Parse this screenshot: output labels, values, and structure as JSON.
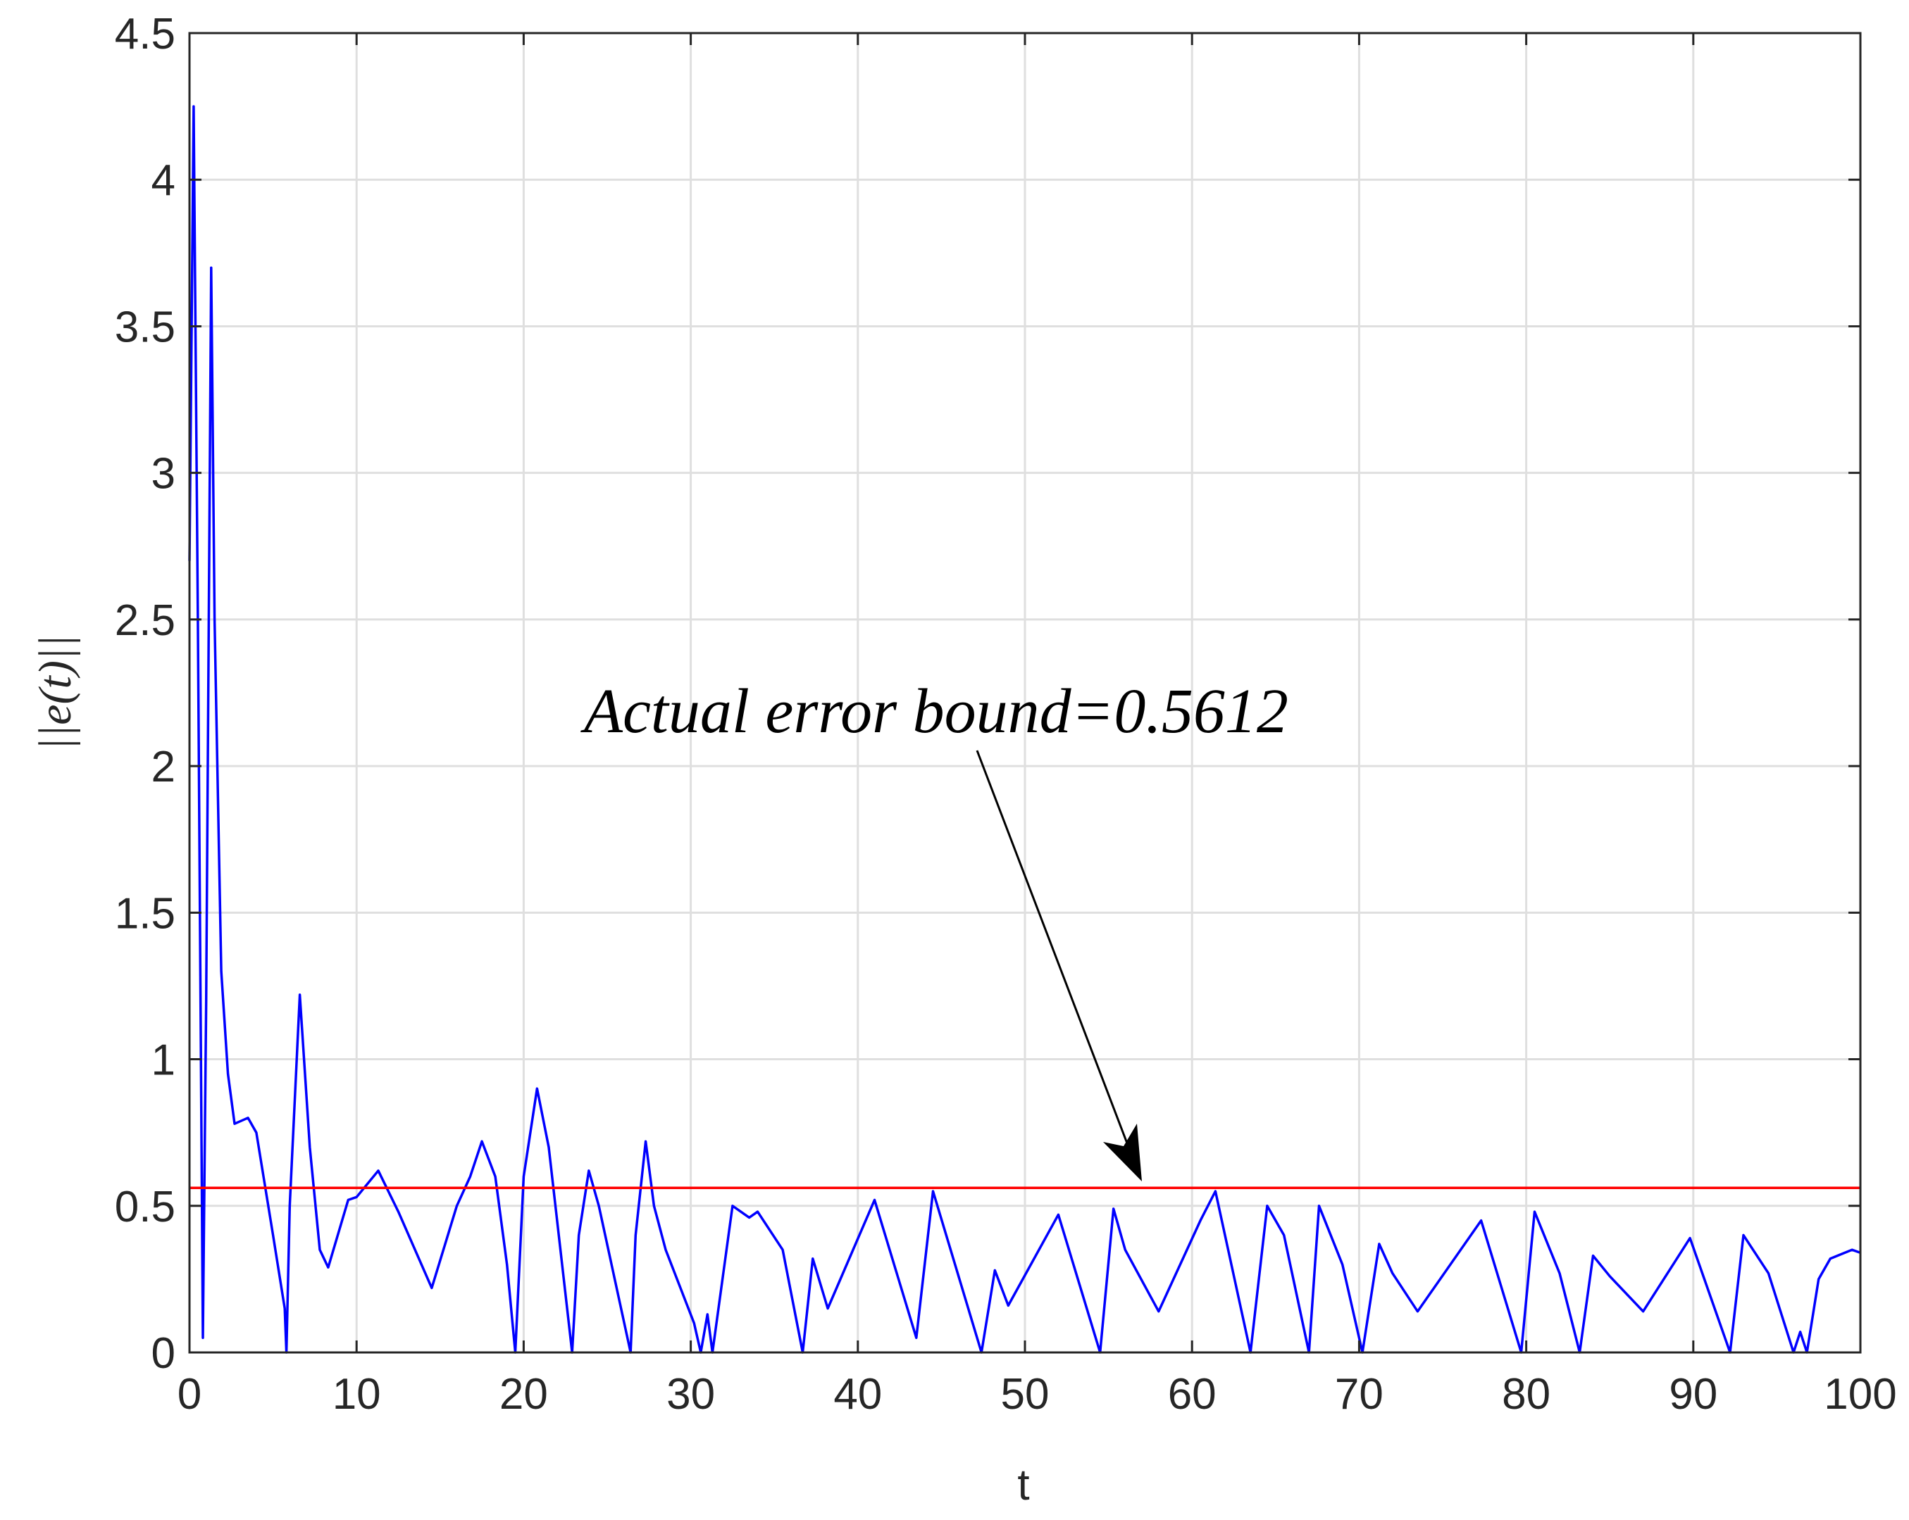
{
  "chart_data": {
    "type": "line",
    "xlabel": "t",
    "ylabel": "||e(t)||",
    "annotation": "Actual error bound=0.5612",
    "reference_line": {
      "value": 0.5612,
      "color": "#ff0000"
    },
    "series": [
      {
        "color": "#0000ff",
        "x": [
          0,
          0.25,
          0.5,
          0.8,
          1.0,
          1.3,
          1.5,
          1.9,
          2.3,
          2.7,
          3.5,
          4,
          5,
          5.7,
          5.8,
          6.0,
          6.6,
          7.2,
          7.8,
          8.3,
          9.5,
          10,
          11.3,
          12.5,
          14.5,
          16,
          16.8,
          17.5,
          18.3,
          19,
          19.5,
          20,
          20.8,
          21.5,
          22.9,
          23.3,
          23.9,
          24.5,
          26.4,
          26.7,
          27.3,
          27.8,
          28.5,
          30.2,
          30.6,
          31,
          31.3,
          32.5,
          33.5,
          34,
          35.5,
          36.7,
          37.3,
          38.2,
          41,
          43.5,
          44.5,
          47.4,
          48.2,
          49,
          52,
          54.5,
          55.3,
          56,
          58,
          60.5,
          61.4,
          63.5,
          64.5,
          65.5,
          67,
          67.6,
          69,
          70.2,
          71.2,
          72,
          73.5,
          77.3,
          79.7,
          80.5,
          82,
          83.2,
          84,
          85,
          87,
          89.8,
          92.2,
          93,
          94.5,
          96,
          96.4,
          96.8,
          97.5,
          98.2,
          99.5,
          100
        ],
        "values": [
          2.7,
          4.25,
          2.5,
          0.05,
          1.2,
          3.7,
          2.5,
          1.3,
          0.95,
          0.78,
          0.8,
          0.75,
          0.4,
          0.15,
          0.0,
          0.5,
          1.22,
          0.7,
          0.35,
          0.29,
          0.52,
          0.53,
          0.62,
          0.48,
          0.22,
          0.5,
          0.6,
          0.72,
          0.6,
          0.3,
          0.0,
          0.6,
          0.9,
          0.7,
          0.0,
          0.4,
          0.62,
          0.5,
          0.0,
          0.4,
          0.72,
          0.5,
          0.35,
          0.1,
          0.0,
          0.13,
          0.0,
          0.5,
          0.46,
          0.48,
          0.35,
          0.0,
          0.32,
          0.15,
          0.52,
          0.05,
          0.55,
          0.0,
          0.28,
          0.16,
          0.47,
          0.0,
          0.49,
          0.35,
          0.14,
          0.45,
          0.55,
          0.0,
          0.5,
          0.4,
          0.0,
          0.5,
          0.3,
          0.0,
          0.37,
          0.27,
          0.14,
          0.45,
          0.0,
          0.48,
          0.27,
          0.0,
          0.33,
          0.26,
          0.14,
          0.39,
          0.0,
          0.4,
          0.27,
          0.0,
          0.07,
          0.0,
          0.25,
          0.32,
          0.35,
          0.34
        ]
      }
    ],
    "xlim": [
      0,
      100
    ],
    "xticks": [
      0,
      10,
      20,
      30,
      40,
      50,
      60,
      70,
      80,
      90,
      100
    ],
    "ylim": [
      0,
      4.5
    ],
    "yticks": [
      0,
      0.5,
      1,
      1.5,
      2,
      2.5,
      3,
      3.5,
      4,
      4.5
    ],
    "grid": true
  }
}
